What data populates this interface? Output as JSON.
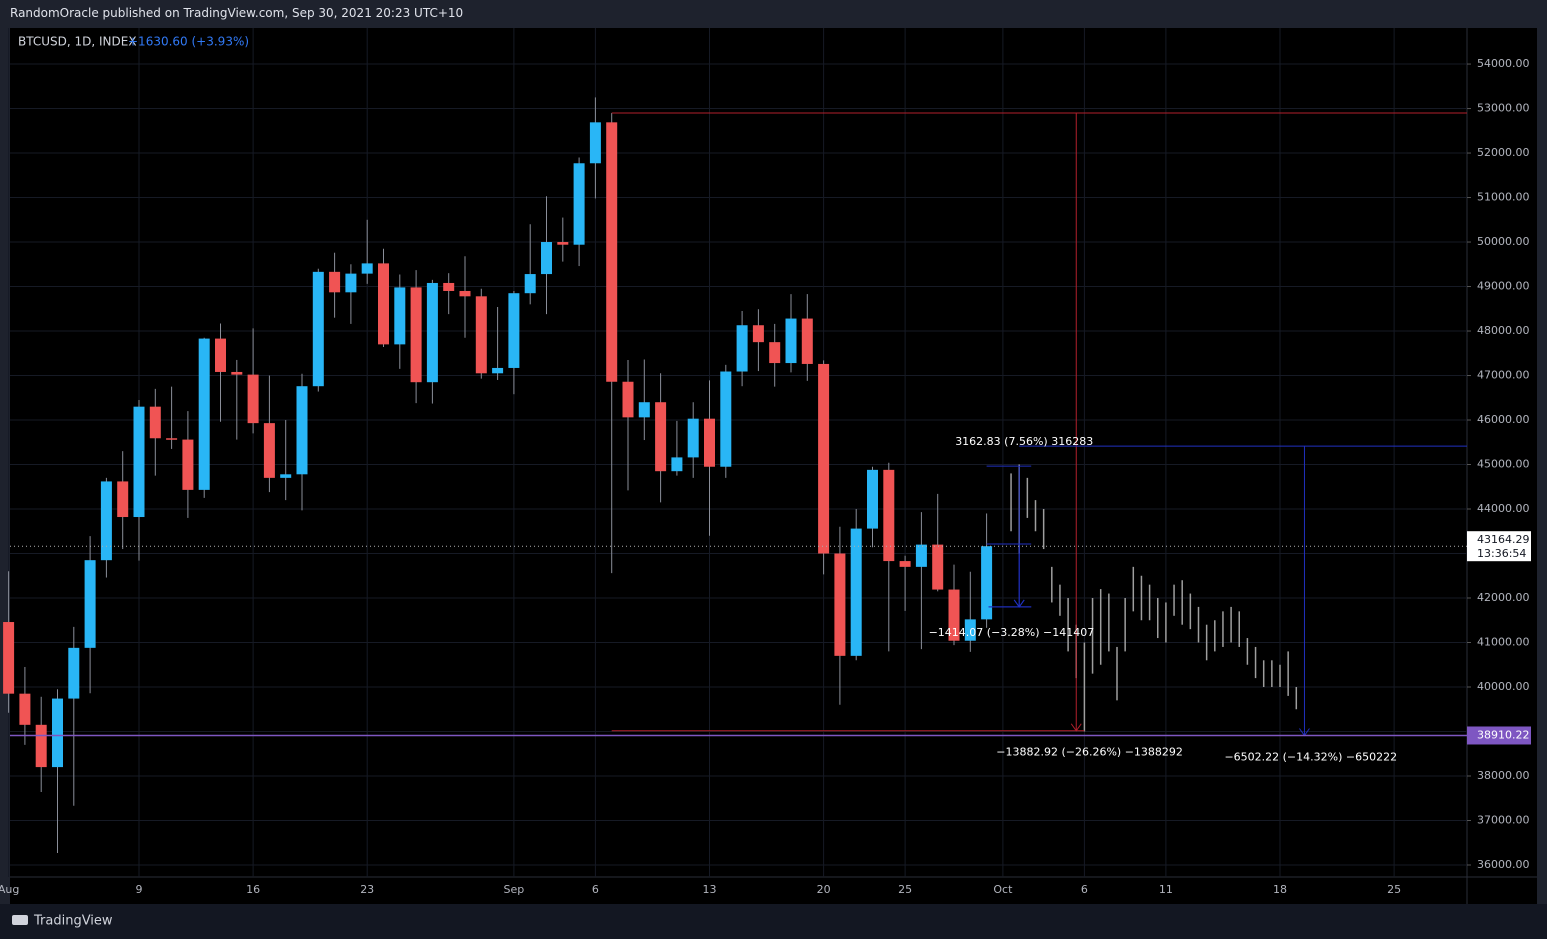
{
  "header": {
    "publisher": "RandomOracle published on TradingView.com, Sep 30, 2021 20:23 UTC+10"
  },
  "footer": {
    "brand": "TradingView"
  },
  "chart_data": {
    "type": "candlestick",
    "symbol": "BTCUSD, 1D, INDEX",
    "change_label": "+1630.60 (+3.93%)",
    "up_color": "#29b6f6",
    "down_color": "#f05454",
    "open": [
      41460,
      39850,
      39150,
      38200,
      39740,
      40880,
      42850,
      44620,
      43820,
      46300,
      45590,
      45560,
      44430,
      47830,
      47080,
      47020,
      45930,
      44700,
      44780,
      46760,
      49330,
      48870,
      49290,
      49520,
      47700,
      48980,
      46850,
      49080,
      48900,
      48780,
      47050,
      47170,
      48850,
      49280,
      50000,
      49940,
      51770,
      52690,
      46860,
      46060,
      46400,
      44850,
      45160,
      46030,
      44950,
      47090,
      48130,
      47750,
      47280,
      48280,
      47260,
      43000,
      40700,
      43560,
      44880,
      42830,
      42700,
      43200,
      42190,
      41040,
      41520
    ],
    "high": [
      42600,
      40450,
      39780,
      39950,
      41350,
      43390,
      44700,
      45300,
      46450,
      46700,
      46750,
      46200,
      47850,
      48170,
      47350,
      48060,
      47000,
      46000,
      47040,
      49400,
      49760,
      49500,
      50500,
      49850,
      49270,
      49370,
      49150,
      49300,
      49680,
      48950,
      48540,
      48900,
      50400,
      51030,
      50550,
      51900,
      53250,
      52900,
      47350,
      47360,
      47050,
      45980,
      46400,
      46890,
      47240,
      48450,
      48490,
      48160,
      48830,
      48830,
      47340,
      43600,
      44000,
      44950,
      45040,
      42950,
      43930,
      44340,
      42750,
      42590,
      43900
    ],
    "low": [
      39420,
      38700,
      37640,
      36270,
      37330,
      39860,
      42460,
      43100,
      42840,
      44750,
      45350,
      43800,
      44250,
      45960,
      45560,
      45700,
      44380,
      44200,
      43970,
      46640,
      48300,
      48160,
      49060,
      47640,
      47150,
      46380,
      46370,
      48380,
      47850,
      46930,
      46900,
      46580,
      48600,
      48380,
      49560,
      49460,
      50980,
      42560,
      44420,
      45550,
      44150,
      44750,
      44700,
      43400,
      44700,
      46760,
      47100,
      46750,
      47070,
      46880,
      42530,
      39600,
      40600,
      43140,
      40800,
      41710,
      40850,
      42150,
      40940,
      40790,
      41330
    ],
    "close": [
      39850,
      39150,
      38200,
      39740,
      40880,
      42850,
      44620,
      43820,
      46300,
      45590,
      45560,
      44430,
      47830,
      47080,
      47020,
      45930,
      44700,
      44780,
      46760,
      49330,
      48870,
      49290,
      49520,
      47700,
      48980,
      46850,
      49080,
      48900,
      48780,
      47050,
      47170,
      48850,
      49280,
      50000,
      49940,
      51770,
      52690,
      46860,
      46060,
      46400,
      44850,
      45160,
      46030,
      44950,
      47090,
      48130,
      47750,
      47280,
      48280,
      47260,
      43000,
      40700,
      43560,
      44880,
      42830,
      42700,
      43200,
      42190,
      41040,
      41520,
      43164.29
    ],
    "projection": {
      "color": "#9e9e9e",
      "high": [
        44800,
        45000,
        44700,
        44200,
        44000,
        42700,
        42300,
        42000,
        41400,
        41000,
        42000,
        42200,
        42100,
        40900,
        42000,
        42700,
        42500,
        42300,
        42000,
        41900,
        42300,
        42400,
        42100,
        41800,
        41400,
        41500,
        41700,
        41800,
        41700,
        41100,
        40900,
        40600,
        40600,
        40500,
        40800,
        40000
      ],
      "low": [
        43500,
        43000,
        43800,
        43500,
        43100,
        41900,
        41600,
        40800,
        40200,
        39000,
        40300,
        40500,
        40800,
        39700,
        40800,
        41700,
        41500,
        41500,
        41100,
        41000,
        41600,
        41400,
        41300,
        41000,
        40600,
        40800,
        40900,
        41000,
        40900,
        40500,
        40200,
        40000,
        40000,
        40000,
        39800,
        39500
      ]
    },
    "ylim": [
      35730,
      54810
    ],
    "yticks": [
      {
        "value": 36000,
        "label": "36000.00"
      },
      {
        "value": 37000,
        "label": "37000.00"
      },
      {
        "value": 38000,
        "label": "38000.00"
      },
      {
        "value": 39000,
        "label": "39000.00"
      },
      {
        "value": 40000,
        "label": "40000.00"
      },
      {
        "value": 41000,
        "label": "41000.00"
      },
      {
        "value": 42000,
        "label": "42000.00"
      },
      {
        "value": 43000,
        "label": "43000.00"
      },
      {
        "value": 44000,
        "label": "44000.00"
      },
      {
        "value": 45000,
        "label": "45000.00"
      },
      {
        "value": 46000,
        "label": "46000.00"
      },
      {
        "value": 47000,
        "label": "47000.00"
      },
      {
        "value": 48000,
        "label": "48000.00"
      },
      {
        "value": 49000,
        "label": "49000.00"
      },
      {
        "value": 50000,
        "label": "50000.00"
      },
      {
        "value": 51000,
        "label": "51000.00"
      },
      {
        "value": 52000,
        "label": "52000.00"
      },
      {
        "value": 53000,
        "label": "53000.00"
      },
      {
        "value": 54000,
        "label": "54000.00"
      }
    ],
    "xticks": [
      {
        "value": 0,
        "label": "Aug"
      },
      {
        "value": 8,
        "label": "9"
      },
      {
        "value": 15,
        "label": "16"
      },
      {
        "value": 22,
        "label": "23"
      },
      {
        "value": 31,
        "label": "Sep"
      },
      {
        "value": 36,
        "label": "6"
      },
      {
        "value": 43,
        "label": "13"
      },
      {
        "value": 50,
        "label": "20"
      },
      {
        "value": 55,
        "label": "25"
      },
      {
        "value": 61,
        "label": "Oct"
      },
      {
        "value": 66,
        "label": "6"
      },
      {
        "value": 71,
        "label": "11"
      },
      {
        "value": 78,
        "label": "18"
      },
      {
        "value": 85,
        "label": "25"
      }
    ],
    "grid": true,
    "last_price": 43164.29,
    "countdown": "13:36:54",
    "level": {
      "price": 38910.22,
      "color": "#7e57c2"
    },
    "measures": [
      {
        "color": "#b2202c",
        "from": 37,
        "to": 65.5,
        "top": 52900,
        "bottom": 39017,
        "label": "−13882.92 (−26.26%) −1388292"
      },
      {
        "color": "#2030c0",
        "from": 62,
        "to": 79.5,
        "top": 45412,
        "bottom": 38910,
        "label": "−6502.22 (−14.32%) −650222"
      },
      {
        "color": "#2030c0",
        "from": 60,
        "to": 62,
        "top": 44963,
        "bottom": 41800,
        "label": "3162.83 (7.56%) 316283"
      },
      {
        "color": "#2030c0",
        "from": 60,
        "to": 62,
        "top": 43214,
        "bottom": 41800,
        "label": "−1414.07 (−3.28%) −141407"
      }
    ]
  }
}
